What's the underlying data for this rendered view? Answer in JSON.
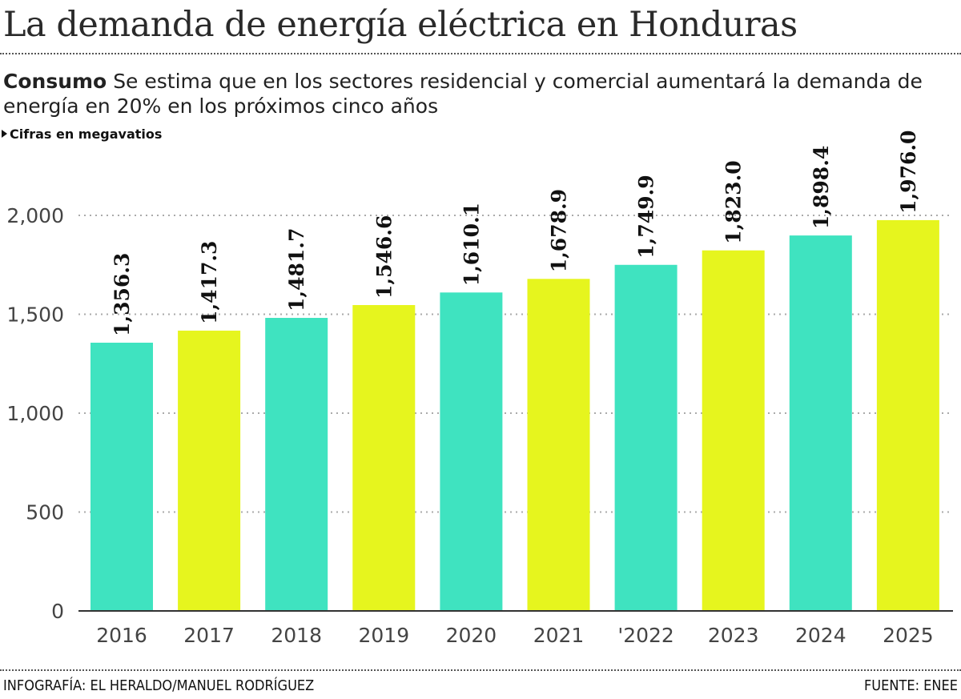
{
  "header": {
    "title": "La demanda de energía eléctrica en Honduras",
    "lead_bold": "Consumo",
    "lead_text": "Se estima que en los sectores residencial y comercial aumentará la demanda de energía en 20% en los próximos cinco años",
    "units": "Cifras en megavatios"
  },
  "footer": {
    "credit": "INFOGRAFÍA: EL HERALDO/MANUEL RODRÍGUEZ",
    "source": "FUENTE: ENEE"
  },
  "colors": {
    "teal": "#3fe3c0",
    "yellow": "#e6f51e",
    "grid": "#aaaaaa"
  },
  "chart_data": {
    "type": "bar",
    "categories": [
      "2016",
      "2017",
      "2018",
      "2019",
      "2020",
      "2021",
      "'2022",
      "2023",
      "2024",
      "2025"
    ],
    "values": [
      1356.3,
      1417.3,
      1481.7,
      1546.6,
      1610.1,
      1678.9,
      1749.9,
      1823.0,
      1898.4,
      1976.0
    ],
    "value_labels": [
      "1,356.3",
      "1,417.3",
      "1,481.7",
      "1,546.6",
      "1,610.1",
      "1,678.9",
      "1,749.9",
      "1,823.0",
      "1,898.4",
      "1,976.0"
    ],
    "bar_colors": [
      "teal",
      "yellow",
      "teal",
      "yellow",
      "teal",
      "yellow",
      "teal",
      "yellow",
      "teal",
      "yellow"
    ],
    "yticks": [
      0,
      500,
      1000,
      1500,
      2000
    ],
    "ytick_labels": [
      "0",
      "500",
      "1,000",
      "1,500",
      "2,000"
    ],
    "ylim": [
      0,
      2000
    ],
    "grid": true,
    "xlabel": "",
    "ylabel": ""
  }
}
